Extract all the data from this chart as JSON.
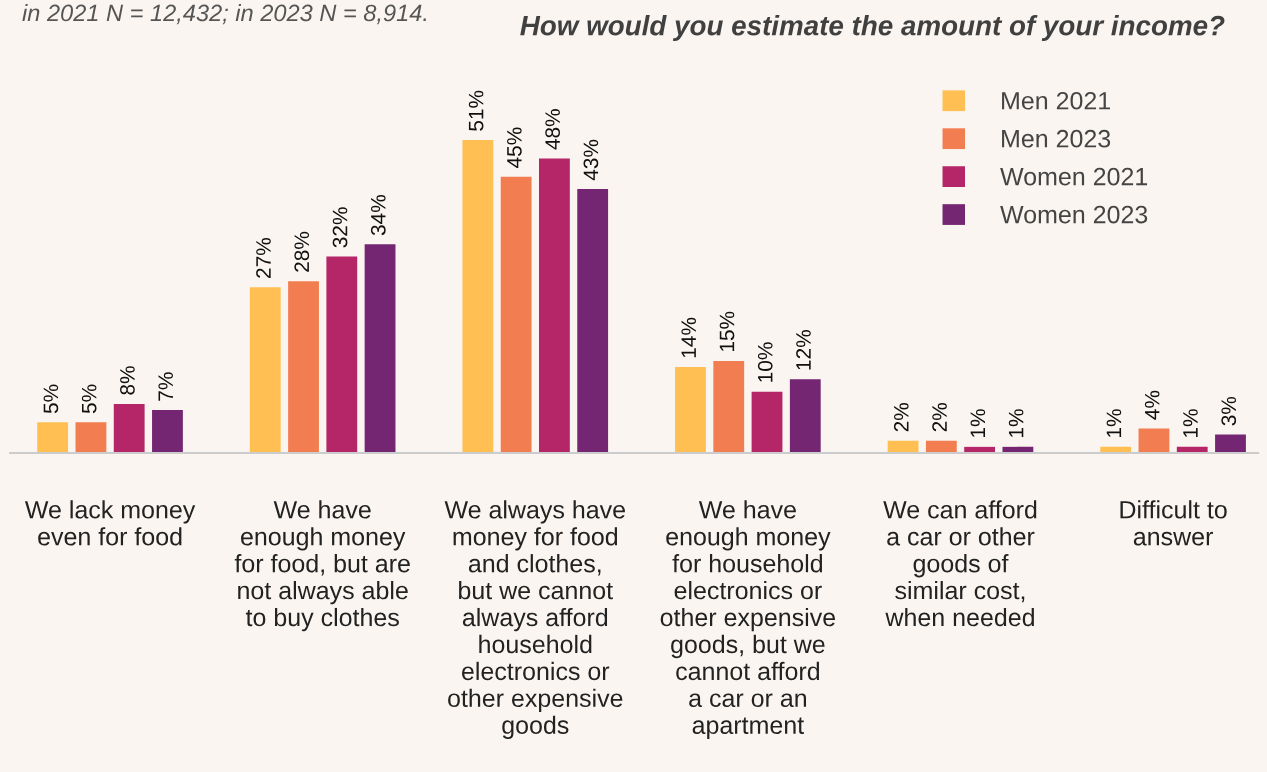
{
  "chart_data": {
    "type": "bar",
    "title": "How would you estimate the amount of your income?",
    "annotations": [
      "in 2021 N = 12,432; in 2023 N = 8,914."
    ],
    "categories": [
      "We lack money\neven for food",
      "We have\nenough money\nfor food, but are\nnot always able\nto buy clothes",
      "We always have\nmoney for food\nand clothes,\nbut we cannot\nalways afford\nhousehold\nelectronics or\nother expensive\ngoods",
      "We have\nenough money\nfor household\nelectronics or\nother expensive\ngoods, but we\ncannot afford\na car or an\napartment",
      "We can afford\na car or other\ngoods of\nsimilar cost,\nwhen needed",
      "Difficult to\nanswer"
    ],
    "series": [
      {
        "name": "Men 2021",
        "color": "#ffbf52",
        "values": [
          5,
          27,
          51,
          14,
          2,
          1
        ],
        "value_labels": [
          "5%",
          "27%",
          "51%",
          "14%",
          "2%",
          "1%"
        ]
      },
      {
        "name": "Men 2023",
        "color": "#f27d50",
        "values": [
          5,
          28,
          45,
          15,
          2,
          4
        ],
        "value_labels": [
          "5%",
          "28%",
          "45%",
          "15%",
          "2%",
          "4%"
        ]
      },
      {
        "name": "Women 2021",
        "color": "#b42667",
        "values": [
          8,
          32,
          48,
          10,
          1,
          1
        ],
        "value_labels": [
          "8%",
          "32%",
          "48%",
          "10%",
          "1%",
          "1%"
        ]
      },
      {
        "name": "Women 2023",
        "color": "#742673",
        "values": [
          7,
          34,
          43,
          12,
          1,
          3
        ],
        "value_labels": [
          "7%",
          "34%",
          "43%",
          "12%",
          "1%",
          "3%"
        ]
      }
    ],
    "legend": "top right",
    "grid": false
  }
}
